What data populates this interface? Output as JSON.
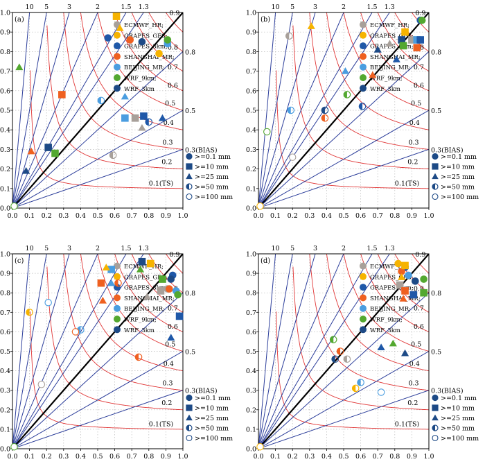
{
  "colors": {
    "ECMWF_HR": "#a8a09a",
    "GRAPES_GFS": "#f6b300",
    "GRAPES_3km": "#1f58a8",
    "SHANGHAI_MR": "#ef6020",
    "BEIJING_MR": "#4a9de0",
    "WRF_9km": "#53a830",
    "WRF_3km": "#1d4a86",
    "ts_curve": "#e03535",
    "bias_line": "#2b3d9a",
    "diagonal": "#000000",
    "legend_marker": "#1d4a86"
  },
  "legend_models": [
    {
      "key": "ECMWF_HR",
      "label": "ECMWF_HR;"
    },
    {
      "key": "GRAPES_GFS",
      "label": "GRAPES_GFS;"
    },
    {
      "key": "GRAPES_3km",
      "label": "GRAPES_3km;"
    },
    {
      "key": "SHANGHAI_MR",
      "label": "SHANGHAI_MR;"
    },
    {
      "key": "BEIJING_MR",
      "label": "BEIJING_MR;"
    },
    {
      "key": "WRF_9km",
      "label": "WRF_9km;"
    },
    {
      "key": "WRF_3km",
      "label": "WRF_3km"
    }
  ],
  "legend_thresholds": [
    {
      "marker": "circle",
      "label": ">=0.1 mm"
    },
    {
      "marker": "square",
      "label": ">=10 mm"
    },
    {
      "marker": "triangle",
      "label": ">=25 mm"
    },
    {
      "marker": "halfcircle",
      "label": ">=50 mm"
    },
    {
      "marker": "opencircle",
      "label": ">=100 mm"
    }
  ],
  "axis_ticks": [
    "0.0",
    "0.1",
    "0.2",
    "0.3",
    "0.4",
    "0.5",
    "0.6",
    "0.7",
    "0.8",
    "0.9",
    "1.0"
  ],
  "bias_labels_top": [
    "10",
    "5",
    "3",
    "2",
    "1.5",
    "1.3"
  ],
  "bias_labels_right": [
    "0.8",
    "0.5",
    "0.3(BIAS)"
  ],
  "ts_labels": [
    "0.9",
    "0.8",
    "0.7",
    "0.6",
    "0.5",
    "0.4",
    "0.3",
    "0.2",
    "0.1(TS)"
  ],
  "chart_data": [
    {
      "type": "scatter",
      "panel_label": "(a)",
      "xlim": [
        0,
        1
      ],
      "ylim": [
        0,
        1
      ],
      "points": [
        {
          "model": "ECMWF_HR",
          "threshold": ">=0.1 mm",
          "x": 0.91,
          "y": 0.85
        },
        {
          "model": "GRAPES_GFS",
          "threshold": ">=0.1 mm",
          "x": 0.86,
          "y": 0.79
        },
        {
          "model": "GRAPES_3km",
          "threshold": ">=0.1 mm",
          "x": 0.56,
          "y": 0.87
        },
        {
          "model": "SHANGHAI_MR",
          "threshold": ">=0.1 mm",
          "x": 0.69,
          "y": 0.86
        },
        {
          "model": "BEIJING_MR",
          "threshold": ">=0.1 mm",
          "x": 0.91,
          "y": 0.84
        },
        {
          "model": "WRF_9km",
          "threshold": ">=0.1 mm",
          "x": 0.91,
          "y": 0.86
        },
        {
          "model": "WRF_3km",
          "threshold": ">=0.1 mm",
          "x": 0.76,
          "y": 0.85
        },
        {
          "model": "GRAPES_GFS",
          "threshold": ">=10 mm",
          "x": 0.61,
          "y": 0.98
        },
        {
          "model": "ECMWF_HR",
          "threshold": ">=10 mm",
          "x": 0.72,
          "y": 0.46
        },
        {
          "model": "BEIJING_MR",
          "threshold": ">=10 mm",
          "x": 0.66,
          "y": 0.46
        },
        {
          "model": "GRAPES_3km",
          "threshold": ">=10 mm",
          "x": 0.77,
          "y": 0.47
        },
        {
          "model": "SHANGHAI_MR",
          "threshold": ">=10 mm",
          "x": 0.29,
          "y": 0.58
        },
        {
          "model": "WRF_3km",
          "threshold": ">=10 mm",
          "x": 0.21,
          "y": 0.31
        },
        {
          "model": "WRF_9km",
          "threshold": ">=10 mm",
          "x": 0.25,
          "y": 0.28
        },
        {
          "model": "GRAPES_GFS",
          "threshold": ">=25 mm",
          "x": 0.63,
          "y": 0.92
        },
        {
          "model": "WRF_9km",
          "threshold": ">=25 mm",
          "x": 0.04,
          "y": 0.72
        },
        {
          "model": "SHANGHAI_MR",
          "threshold": ">=25 mm",
          "x": 0.11,
          "y": 0.29
        },
        {
          "model": "WRF_3km",
          "threshold": ">=25 mm",
          "x": 0.08,
          "y": 0.19
        },
        {
          "model": "BEIJING_MR",
          "threshold": ">=25 mm",
          "x": 0.66,
          "y": 0.57
        },
        {
          "model": "ECMWF_HR",
          "threshold": ">=25 mm",
          "x": 0.76,
          "y": 0.41
        },
        {
          "model": "GRAPES_3km",
          "threshold": ">=25 mm",
          "x": 0.88,
          "y": 0.46
        },
        {
          "model": "BEIJING_MR",
          "threshold": ">=50 mm",
          "x": 0.52,
          "y": 0.55
        },
        {
          "model": "GRAPES_3km",
          "threshold": ">=50 mm",
          "x": 0.8,
          "y": 0.44
        },
        {
          "model": "ECMWF_HR",
          "threshold": ">=50 mm",
          "x": 0.59,
          "y": 0.27
        },
        {
          "model": "WRF_9km",
          "threshold": ">=100 mm",
          "x": 0.01,
          "y": 0.01
        }
      ]
    },
    {
      "type": "scatter",
      "panel_label": "(b)",
      "xlim": [
        0,
        1
      ],
      "ylim": [
        0,
        1
      ],
      "points": [
        {
          "model": "GRAPES_3km",
          "threshold": ">=0.1 mm",
          "x": 0.95,
          "y": 0.96
        },
        {
          "model": "WRF_9km",
          "threshold": ">=0.1 mm",
          "x": 0.96,
          "y": 0.96
        },
        {
          "model": "GRAPES_GFS",
          "threshold": ">=10 mm",
          "x": 0.86,
          "y": 0.9
        },
        {
          "model": "WRF_3km",
          "threshold": ">=10 mm",
          "x": 0.84,
          "y": 0.86
        },
        {
          "model": "ECMWF_HR",
          "threshold": ">=10 mm",
          "x": 0.9,
          "y": 0.86
        },
        {
          "model": "BEIJING_MR",
          "threshold": ">=10 mm",
          "x": 0.93,
          "y": 0.86
        },
        {
          "model": "GRAPES_3km",
          "threshold": ">=10 mm",
          "x": 0.95,
          "y": 0.86
        },
        {
          "model": "WRF_9km",
          "threshold": ">=10 mm",
          "x": 0.85,
          "y": 0.83
        },
        {
          "model": "SHANGHAI_MR",
          "threshold": ">=10 mm",
          "x": 0.93,
          "y": 0.82
        },
        {
          "model": "GRAPES_GFS",
          "threshold": ">=25 mm",
          "x": 0.31,
          "y": 0.93
        },
        {
          "model": "ECMWF_HR",
          "threshold": ">=25 mm",
          "x": 0.77,
          "y": 0.84
        },
        {
          "model": "WRF_3km",
          "threshold": ">=25 mm",
          "x": 0.7,
          "y": 0.81
        },
        {
          "model": "GRAPES_3km",
          "threshold": ">=25 mm",
          "x": 0.81,
          "y": 0.76
        },
        {
          "model": "BEIJING_MR",
          "threshold": ">=25 mm",
          "x": 0.51,
          "y": 0.7
        },
        {
          "model": "SHANGHAI_MR",
          "threshold": ">=25 mm",
          "x": 0.67,
          "y": 0.68
        },
        {
          "model": "ECMWF_HR",
          "threshold": ">=50 mm",
          "x": 0.18,
          "y": 0.88
        },
        {
          "model": "WRF_9km",
          "threshold": ">=50 mm",
          "x": 0.52,
          "y": 0.58
        },
        {
          "model": "GRAPES_3km",
          "threshold": ">=50 mm",
          "x": 0.61,
          "y": 0.52
        },
        {
          "model": "BEIJING_MR",
          "threshold": ">=50 mm",
          "x": 0.19,
          "y": 0.5
        },
        {
          "model": "WRF_3km",
          "threshold": ">=50 mm",
          "x": 0.39,
          "y": 0.5
        },
        {
          "model": "SHANGHAI_MR",
          "threshold": ">=50 mm",
          "x": 0.39,
          "y": 0.46
        },
        {
          "model": "WRF_9km",
          "threshold": ">=100 mm",
          "x": 0.05,
          "y": 0.39
        },
        {
          "model": "ECMWF_HR",
          "threshold": ">=100 mm",
          "x": 0.2,
          "y": 0.26
        },
        {
          "model": "GRAPES_GFS",
          "threshold": ">=100 mm",
          "x": 0.01,
          "y": 0.01
        }
      ]
    },
    {
      "type": "scatter",
      "panel_label": "(c)",
      "xlim": [
        0,
        1
      ],
      "ylim": [
        0,
        1
      ],
      "points": [
        {
          "model": "GRAPES_3km",
          "threshold": ">=0.1 mm",
          "x": 0.94,
          "y": 0.89
        },
        {
          "model": "WRF_3km",
          "threshold": ">=0.1 mm",
          "x": 0.93,
          "y": 0.87
        },
        {
          "model": "ECMWF_HR",
          "threshold": ">=0.1 mm",
          "x": 0.91,
          "y": 0.82
        },
        {
          "model": "SHANGHAI_MR",
          "threshold": ">=0.1 mm",
          "x": 0.92,
          "y": 0.82
        },
        {
          "model": "BEIJING_MR",
          "threshold": ">=0.1 mm",
          "x": 0.96,
          "y": 0.81
        },
        {
          "model": "WRF_9km",
          "threshold": ">=0.1 mm",
          "x": 0.97,
          "y": 0.79
        },
        {
          "model": "WRF_3km",
          "threshold": ">=10 mm",
          "x": 0.76,
          "y": 0.96
        },
        {
          "model": "GRAPES_GFS",
          "threshold": ">=10 mm",
          "x": 0.81,
          "y": 0.95
        },
        {
          "model": "BEIJING_MR",
          "threshold": ">=10 mm",
          "x": 0.58,
          "y": 0.92
        },
        {
          "model": "WRF_9km",
          "threshold": ">=10 mm",
          "x": 0.88,
          "y": 0.87
        },
        {
          "model": "SHANGHAI_MR",
          "threshold": ">=10 mm",
          "x": 0.52,
          "y": 0.85
        },
        {
          "model": "ECMWF_HR",
          "threshold": ">=10 mm",
          "x": 0.87,
          "y": 0.81
        },
        {
          "model": "GRAPES_3km",
          "threshold": ">=10 mm",
          "x": 0.98,
          "y": 0.68
        },
        {
          "model": "GRAPES_GFS",
          "threshold": ">=25 mm",
          "x": 0.55,
          "y": 0.93
        },
        {
          "model": "WRF_9km",
          "threshold": ">=25 mm",
          "x": 0.75,
          "y": 0.92
        },
        {
          "model": "BEIJING_MR",
          "threshold": ">=25 mm",
          "x": 0.58,
          "y": 0.85
        },
        {
          "model": "SHANGHAI_MR",
          "threshold": ">=25 mm",
          "x": 0.53,
          "y": 0.76
        },
        {
          "model": "ECMWF_HR",
          "threshold": ">=25 mm",
          "x": 0.79,
          "y": 0.78
        },
        {
          "model": "GRAPES_3km",
          "threshold": ">=25 mm",
          "x": 0.93,
          "y": 0.57
        },
        {
          "model": "GRAPES_GFS",
          "threshold": ">=50 mm",
          "x": 0.1,
          "y": 0.7
        },
        {
          "model": "SHANGHAI_MR",
          "threshold": ">=50 mm",
          "x": 0.62,
          "y": 0.85
        },
        {
          "model": "BEIJING_MR",
          "threshold": ">=50 mm",
          "x": 0.4,
          "y": 0.61
        },
        {
          "model": "SHANGHAI_MR",
          "threshold": ">=50 mm",
          "x": 0.74,
          "y": 0.47
        },
        {
          "model": "BEIJING_MR",
          "threshold": ">=100 mm",
          "x": 0.21,
          "y": 0.75
        },
        {
          "model": "SHANGHAI_MR",
          "threshold": ">=100 mm",
          "x": 0.37,
          "y": 0.6
        },
        {
          "model": "ECMWF_HR",
          "threshold": ">=100 mm",
          "x": 0.17,
          "y": 0.33
        },
        {
          "model": "WRF_9km",
          "threshold": ">=100 mm",
          "x": 0.01,
          "y": 0.01
        }
      ]
    },
    {
      "type": "scatter",
      "panel_label": "(d)",
      "xlim": [
        0,
        1
      ],
      "ylim": [
        0,
        1
      ],
      "points": [
        {
          "model": "GRAPES_GFS",
          "threshold": ">=0.1 mm",
          "x": 0.82,
          "y": 0.95
        },
        {
          "model": "GRAPES_3km",
          "threshold": ">=0.1 mm",
          "x": 0.86,
          "y": 0.93
        },
        {
          "model": "SHANGHAI_MR",
          "threshold": ">=0.1 mm",
          "x": 0.84,
          "y": 0.91
        },
        {
          "model": "BEIJING_MR",
          "threshold": ">=0.1 mm",
          "x": 0.88,
          "y": 0.89
        },
        {
          "model": "WRF_9km",
          "threshold": ">=0.1 mm",
          "x": 0.97,
          "y": 0.87
        },
        {
          "model": "WRF_3km",
          "threshold": ">=0.1 mm",
          "x": 0.92,
          "y": 0.86
        },
        {
          "model": "GRAPES_GFS",
          "threshold": ">=10 mm",
          "x": 0.86,
          "y": 0.94
        },
        {
          "model": "ECMWF_HR",
          "threshold": ">=10 mm",
          "x": 0.83,
          "y": 0.84
        },
        {
          "model": "SHANGHAI_MR",
          "threshold": ">=10 mm",
          "x": 0.86,
          "y": 0.81
        },
        {
          "model": "WRF_9km",
          "threshold": ">=10 mm",
          "x": 0.97,
          "y": 0.8
        },
        {
          "model": "GRAPES_3km",
          "threshold": ">=10 mm",
          "x": 0.91,
          "y": 0.79
        },
        {
          "model": "GRAPES_GFS",
          "threshold": ">=25 mm",
          "x": 0.84,
          "y": 0.88
        },
        {
          "model": "SHANGHAI_MR",
          "threshold": ">=25 mm",
          "x": 0.85,
          "y": 0.77
        },
        {
          "model": "WRF_9km",
          "threshold": ">=25 mm",
          "x": 0.79,
          "y": 0.54
        },
        {
          "model": "GRAPES_3km",
          "threshold": ">=25 mm",
          "x": 0.72,
          "y": 0.52
        },
        {
          "model": "WRF_3km",
          "threshold": ">=25 mm",
          "x": 0.86,
          "y": 0.49
        },
        {
          "model": "WRF_9km",
          "threshold": ">=50 mm",
          "x": 0.44,
          "y": 0.56
        },
        {
          "model": "SHANGHAI_MR",
          "threshold": ">=50 mm",
          "x": 0.48,
          "y": 0.5
        },
        {
          "model": "ECMWF_HR",
          "threshold": ">=50 mm",
          "x": 0.52,
          "y": 0.46
        },
        {
          "model": "WRF_3km",
          "threshold": ">=50 mm",
          "x": 0.45,
          "y": 0.46
        },
        {
          "model": "BEIJING_MR",
          "threshold": ">=50 mm",
          "x": 0.6,
          "y": 0.34
        },
        {
          "model": "GRAPES_GFS",
          "threshold": ">=50 mm",
          "x": 0.57,
          "y": 0.31
        },
        {
          "model": "BEIJING_MR",
          "threshold": ">=100 mm",
          "x": 0.72,
          "y": 0.29
        },
        {
          "model": "GRAPES_GFS",
          "threshold": ">=100 mm",
          "x": 0.01,
          "y": 0.01
        }
      ]
    }
  ]
}
